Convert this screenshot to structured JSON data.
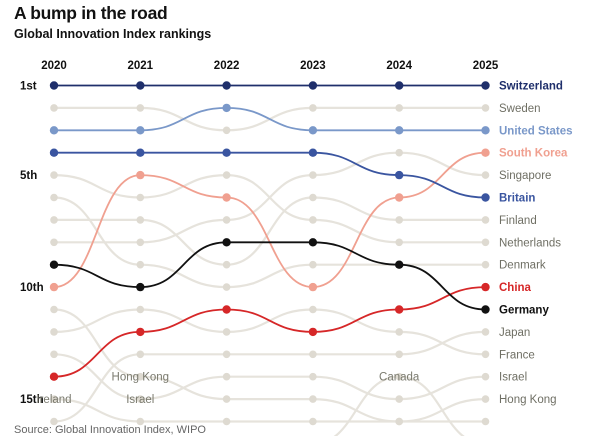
{
  "title": "A bump in the road",
  "subtitle": "Global Innovation Index rankings",
  "source": "Source: Global Innovation Index, WIPO",
  "colors": {
    "background_line": "#e6e3dc",
    "background_dot": "#dedad1",
    "background_label": "#6f6f64"
  },
  "chart_data": {
    "type": "line",
    "title": "A bump in the road",
    "subtitle": "Global Innovation Index rankings",
    "x": [
      "2020",
      "2021",
      "2022",
      "2023",
      "2024",
      "2025"
    ],
    "y_tick_labels": [
      {
        "rank": 1,
        "label": "1st"
      },
      {
        "rank": 5,
        "label": "5th"
      },
      {
        "rank": 10,
        "label": "10th"
      },
      {
        "rank": 15,
        "label": "15th"
      }
    ],
    "ylim": [
      1,
      15
    ],
    "y_inverted": true,
    "grid": false,
    "series": [
      {
        "name": "Switzerland",
        "ranks": [
          1,
          1,
          1,
          1,
          1,
          1
        ],
        "color": "#1f2f6b",
        "highlight": true,
        "label_bold": true
      },
      {
        "name": "Sweden",
        "ranks": [
          2,
          2,
          3,
          2,
          2,
          2
        ],
        "color": "#e6e3dc",
        "highlight": false,
        "label_bold": false
      },
      {
        "name": "United States",
        "ranks": [
          3,
          3,
          2,
          3,
          3,
          3
        ],
        "color": "#7a98c9",
        "highlight": true,
        "label_bold": true
      },
      {
        "name": "South Korea",
        "ranks": [
          10,
          5,
          6,
          10,
          6,
          4
        ],
        "color": "#f0a090",
        "highlight": true,
        "label_bold": true
      },
      {
        "name": "Singapore",
        "ranks": [
          8,
          8,
          7,
          5,
          4,
          5
        ],
        "color": "#e6e3dc",
        "highlight": false,
        "label_bold": false
      },
      {
        "name": "Britain",
        "ranks": [
          4,
          4,
          4,
          4,
          5,
          6
        ],
        "color": "#3a55a0",
        "highlight": true,
        "label_bold": true
      },
      {
        "name": "Finland",
        "ranks": [
          7,
          7,
          9,
          6,
          7,
          7
        ],
        "color": "#e6e3dc",
        "highlight": false,
        "label_bold": false
      },
      {
        "name": "Netherlands",
        "ranks": [
          5,
          6,
          5,
          7,
          8,
          8
        ],
        "color": "#e6e3dc",
        "highlight": false,
        "label_bold": false
      },
      {
        "name": "Denmark",
        "ranks": [
          6,
          9,
          10,
          9,
          9,
          9
        ],
        "color": "#e6e3dc",
        "highlight": false,
        "label_bold": false
      },
      {
        "name": "China",
        "ranks": [
          14,
          12,
          11,
          12,
          11,
          10
        ],
        "color": "#d62728",
        "highlight": true,
        "label_bold": true
      },
      {
        "name": "Germany",
        "ranks": [
          9,
          10,
          8,
          8,
          9,
          11
        ],
        "color": "#111111",
        "highlight": true,
        "label_bold": true
      },
      {
        "name": "Japan",
        "ranks": [
          16,
          13,
          13,
          13,
          13,
          12
        ],
        "color": "#e6e3dc",
        "highlight": false,
        "label_bold": false
      },
      {
        "name": "France",
        "ranks": [
          12,
          11,
          12,
          11,
          12,
          13
        ],
        "color": "#e6e3dc",
        "highlight": false,
        "label_bold": false
      },
      {
        "name": "Israel",
        "ranks": [
          13,
          15,
          14,
          14,
          15,
          14
        ],
        "color": "#e6e3dc",
        "highlight": false,
        "label_bold": false
      },
      {
        "name": "Hong Kong",
        "ranks": [
          11,
          14,
          15,
          15,
          16,
          15
        ],
        "color": "#e6e3dc",
        "highlight": false,
        "label_bold": false
      },
      {
        "name": "Ireland",
        "ranks": [
          15,
          16,
          16,
          16,
          16,
          16
        ],
        "color": "#e6e3dc",
        "highlight": false,
        "label_bold": false
      },
      {
        "name": "Canada",
        "ranks": [
          17,
          17,
          17,
          17,
          14,
          17
        ],
        "color": "#e6e3dc",
        "highlight": false,
        "label_bold": false
      }
    ],
    "annotations": [
      {
        "text": "Hong Kong",
        "year": "2021",
        "rank": 14
      },
      {
        "text": "Israel",
        "year": "2021",
        "rank": 15
      },
      {
        "text": "Ireland",
        "year": "2020",
        "rank": 15
      },
      {
        "text": "Canada",
        "year": "2024",
        "rank": 14
      }
    ]
  }
}
